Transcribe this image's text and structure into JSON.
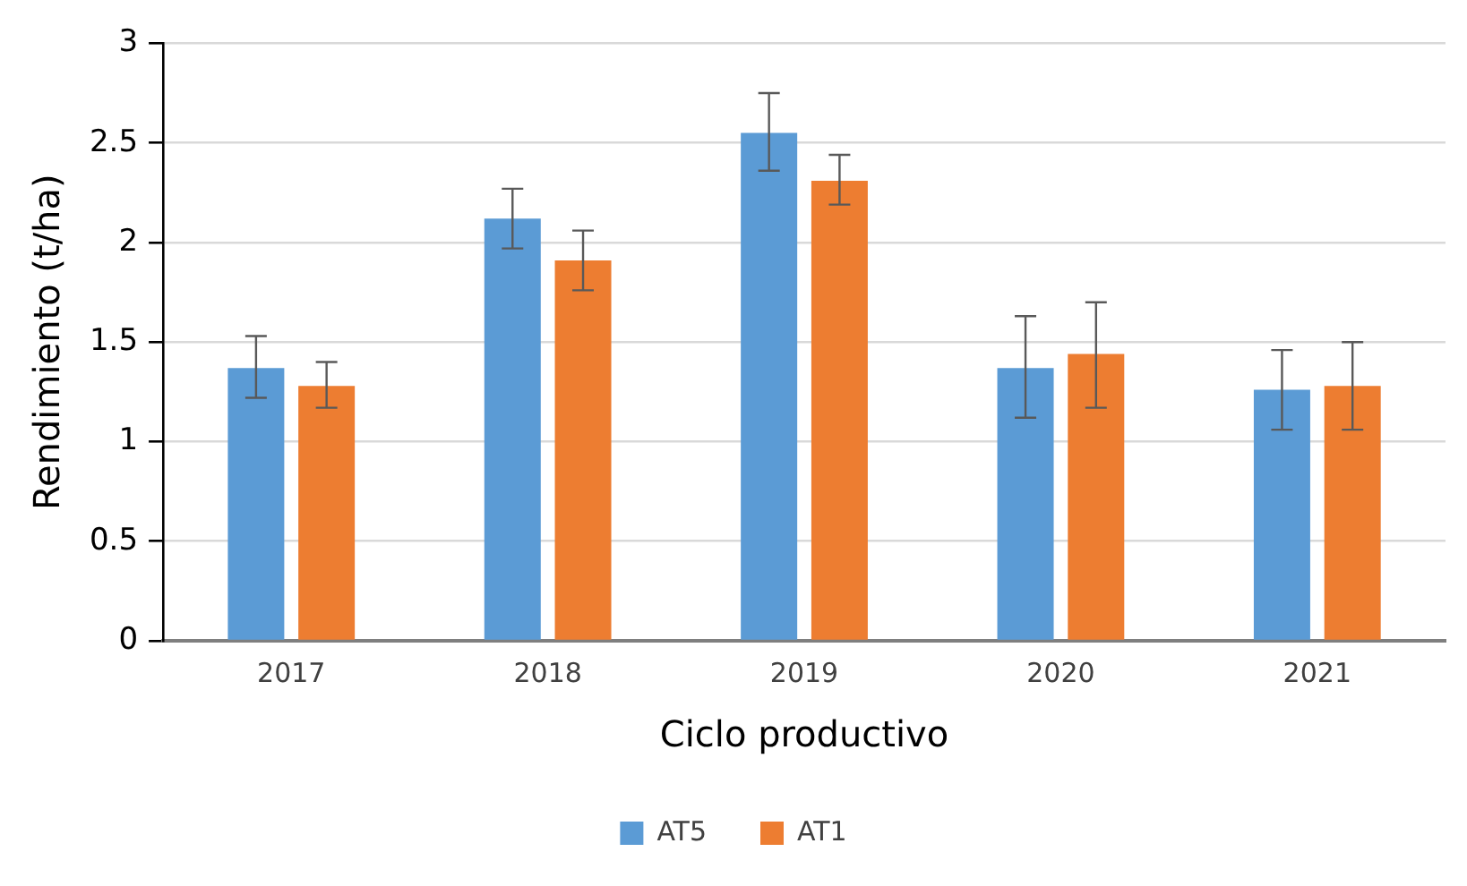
{
  "chart_data": {
    "type": "bar",
    "xlabel": "Ciclo productivo",
    "ylabel": "Rendimiento (t/ha)",
    "categories": [
      "2017",
      "2018",
      "2019",
      "2020",
      "2021"
    ],
    "series": [
      {
        "name": "AT5",
        "color": "#5b9bd5",
        "values": [
          1.37,
          2.12,
          2.55,
          1.37,
          1.26
        ],
        "errors": [
          [
            1.22,
            1.53
          ],
          [
            1.97,
            2.27
          ],
          [
            2.36,
            2.75
          ],
          [
            1.12,
            1.63
          ],
          [
            1.06,
            1.46
          ]
        ]
      },
      {
        "name": "AT1",
        "color": "#ed7d31",
        "values": [
          1.28,
          1.91,
          2.31,
          1.44,
          1.28
        ],
        "errors": [
          [
            1.17,
            1.4
          ],
          [
            1.76,
            2.06
          ],
          [
            2.19,
            2.44
          ],
          [
            1.17,
            1.7
          ],
          [
            1.06,
            1.5
          ]
        ]
      }
    ],
    "ylim": [
      0,
      3
    ],
    "yticks": [
      0,
      0.5,
      1,
      1.5,
      2,
      2.5,
      3
    ],
    "grid": "y",
    "legend": "bottom"
  }
}
